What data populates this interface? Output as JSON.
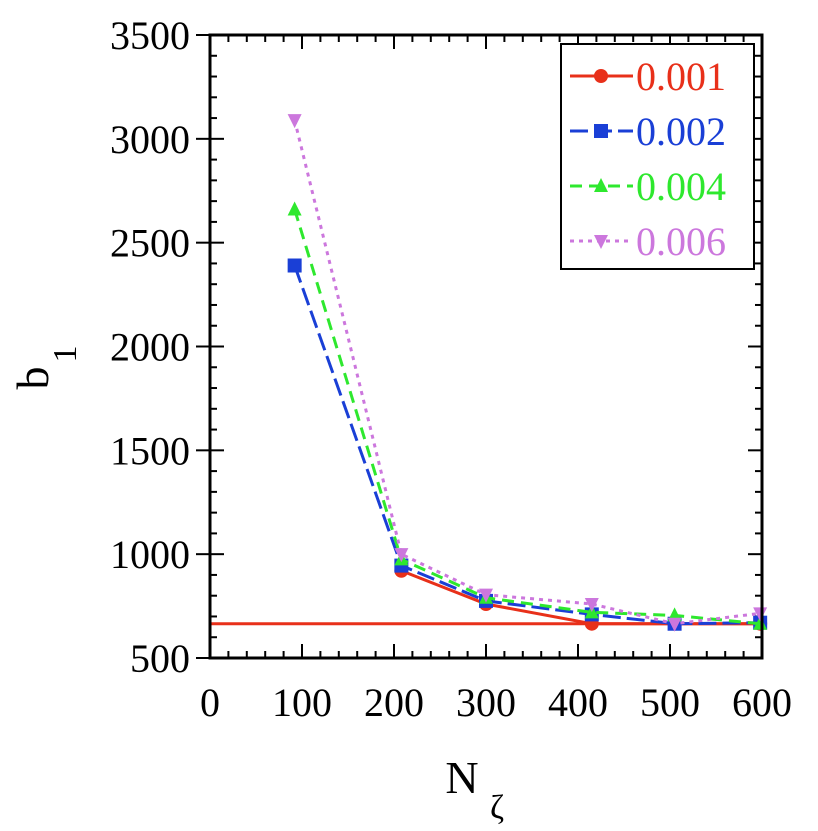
{
  "chart_data": {
    "type": "line",
    "xlabel": "N",
    "xlabel_subscript": "ζ",
    "ylabel": "b",
    "ylabel_subscript": "1",
    "xlim": [
      0,
      600
    ],
    "ylim": [
      500,
      3500
    ],
    "x_ticks": [
      "0",
      "100",
      "200",
      "300",
      "400",
      "500",
      "600"
    ],
    "y_ticks": [
      "500",
      "1000",
      "1500",
      "2000",
      "2500",
      "3000",
      "3500"
    ],
    "grid": false,
    "legend_position": "top-right",
    "reference_line": {
      "y": 665,
      "color": "#e8301a"
    },
    "series": [
      {
        "name": "0.001",
        "color": "#e8301a",
        "marker": "circle",
        "dash": "solid",
        "x": [
          208,
          300,
          415,
          505,
          598
        ],
        "y": [
          920,
          760,
          665,
          665,
          665
        ]
      },
      {
        "name": "0.002",
        "color": "#1a3fd6",
        "marker": "square",
        "dash": "long-dash",
        "x": [
          92,
          208,
          300,
          415,
          505,
          598
        ],
        "y": [
          2390,
          945,
          775,
          710,
          665,
          670
        ]
      },
      {
        "name": "0.004",
        "color": "#2ee82e",
        "marker": "triangle-up",
        "dash": "dash",
        "x": [
          92,
          208,
          300,
          415,
          505,
          598
        ],
        "y": [
          2660,
          975,
          790,
          720,
          705,
          665
        ]
      },
      {
        "name": "0.006",
        "color": "#cc77dd",
        "marker": "triangle-down",
        "dash": "dot",
        "x": [
          92,
          208,
          300,
          415,
          505,
          598
        ],
        "y": [
          3090,
          1000,
          805,
          760,
          665,
          715
        ]
      }
    ]
  }
}
